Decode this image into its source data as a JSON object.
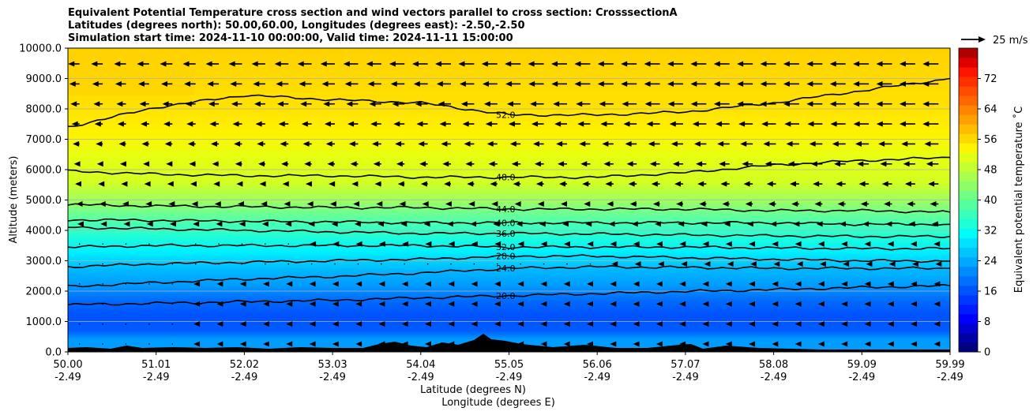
{
  "chart_data": {
    "type": "contourf",
    "title_lines": [
      "Equivalent Potential Temperature cross section and wind vectors parallel to cross section: CrosssectionA",
      "Latitudes (degrees north): 50.00,60.00, Longitudes (degrees east): -2.50,-2.50",
      "Simulation start time: 2024-11-10 00:00:00, Valid time: 2024-11-11 15:00:00"
    ],
    "xlabel_lines": [
      "Latitude (degrees N)",
      "Longitude (degrees E)"
    ],
    "ylabel": "Altitude (meters)",
    "xlim": [
      50.0,
      59.99
    ],
    "ylim": [
      0,
      10000
    ],
    "xticks": [
      {
        "lat": "50.00",
        "lon": "-2.49"
      },
      {
        "lat": "51.01",
        "lon": "-2.49"
      },
      {
        "lat": "52.02",
        "lon": "-2.49"
      },
      {
        "lat": "53.03",
        "lon": "-2.49"
      },
      {
        "lat": "54.04",
        "lon": "-2.49"
      },
      {
        "lat": "55.05",
        "lon": "-2.49"
      },
      {
        "lat": "56.06",
        "lon": "-2.49"
      },
      {
        "lat": "57.07",
        "lon": "-2.49"
      },
      {
        "lat": "58.08",
        "lon": "-2.49"
      },
      {
        "lat": "59.09",
        "lon": "-2.49"
      },
      {
        "lat": "59.99",
        "lon": "-2.49"
      }
    ],
    "yticks": [
      "0.0",
      "1000.0",
      "2000.0",
      "3000.0",
      "4000.0",
      "5000.0",
      "6000.0",
      "7000.0",
      "8000.0",
      "9000.0",
      "10000.0"
    ],
    "grid": "horizontal",
    "colorbar": {
      "label": "Equivalent potential temperature ˚C",
      "range": [
        0,
        80
      ],
      "ticks": [
        "0",
        "8",
        "16",
        "24",
        "32",
        "40",
        "48",
        "56",
        "64",
        "72"
      ]
    },
    "quiver_key_label": "25 m/s",
    "contours": [
      {
        "level": 20.0,
        "label": "20.0",
        "heights_m": [
          1550,
          1600,
          1650,
          1700,
          1780,
          1850,
          1920,
          1990,
          2050,
          2120,
          2180
        ]
      },
      {
        "level": 24.0,
        "label": "24.0",
        "heights_m": [
          2150,
          2280,
          2400,
          2480,
          2600,
          2750,
          2800,
          2780,
          2750,
          2750,
          2750
        ]
      },
      {
        "level": 28.0,
        "label": "28.0",
        "heights_m": [
          2800,
          2900,
          2950,
          3000,
          3050,
          3150,
          3150,
          3100,
          3050,
          3000,
          2990
        ]
      },
      {
        "level": 32.0,
        "label": "32.0",
        "heights_m": [
          3450,
          3500,
          3500,
          3500,
          3500,
          3450,
          3450,
          3450,
          3420,
          3400,
          3400
        ]
      },
      {
        "level": 36.0,
        "label": "36.0",
        "heights_m": [
          4100,
          4050,
          4000,
          3950,
          3900,
          3900,
          3880,
          3850,
          3820,
          3800,
          3800
        ]
      },
      {
        "level": 40.0,
        "label": "40.0",
        "heights_m": [
          4350,
          4330,
          4300,
          4280,
          4250,
          4250,
          4250,
          4250,
          4250,
          4200,
          4200
        ]
      },
      {
        "level": 44.0,
        "label": "44.0",
        "heights_m": [
          4850,
          4800,
          4780,
          4750,
          4750,
          4700,
          4700,
          4700,
          4650,
          4650,
          4600
        ]
      },
      {
        "level": 48.0,
        "label": "48.0",
        "heights_m": [
          5950,
          5850,
          5800,
          5800,
          5750,
          5750,
          5750,
          5900,
          6150,
          6300,
          6400
        ]
      },
      {
        "level": 52.0,
        "label": "52.0",
        "heights_m": [
          7400,
          8050,
          8450,
          8300,
          8200,
          7800,
          7800,
          7900,
          8200,
          8600,
          9000
        ]
      }
    ],
    "contour_labels_shown": [
      "52.0",
      "52.0",
      "48.0",
      "44.0",
      "40.0",
      "36.0",
      "32.0",
      "28.0",
      "24.0",
      "20.0",
      "24.0",
      "20.0",
      "20.0",
      "20.0",
      "20.0",
      "20.0",
      "20.0",
      "24.0"
    ],
    "wind_note": "horizontal wind components parallel to section, mostly negative (toward smaller latitudes), strongest aloft on the right"
  }
}
